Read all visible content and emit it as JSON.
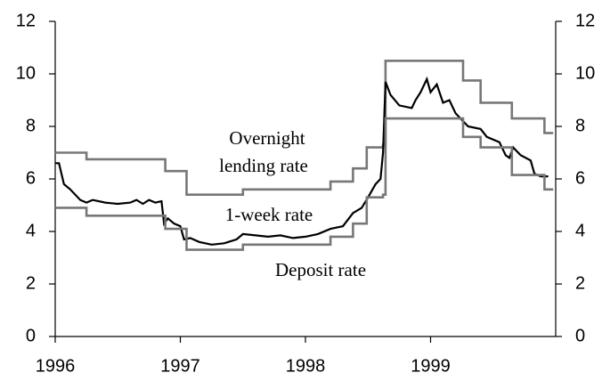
{
  "chart_data": {
    "type": "line",
    "annotations": [
      "Overnight",
      "lending rate",
      "1-week rate",
      "Deposit rate"
    ],
    "xlim": [
      1996,
      2000
    ],
    "xticks": [
      1996,
      1997,
      1998,
      1999
    ],
    "ylim": [
      0,
      12
    ],
    "yticks": [
      0,
      2,
      4,
      6,
      8,
      10,
      12
    ],
    "y2lim": [
      0,
      12
    ],
    "y2ticks": [
      0,
      2,
      4,
      6,
      8,
      10,
      12
    ],
    "grid": false,
    "series": [
      {
        "name": "Overnight lending rate",
        "color": "#777777",
        "x": [
          1996,
          1996.25,
          1996.25,
          1996.88,
          1996.88,
          1997.05,
          1997.05,
          1997.5,
          1997.5,
          1998.2,
          1998.2,
          1998.38,
          1998.38,
          1998.49,
          1998.49,
          1998.62,
          1998.62,
          1998.64,
          1998.64,
          1999.26,
          1999.26,
          1999.4,
          1999.4,
          1999.65,
          1999.65,
          1999.91,
          1999.91,
          1999.98
        ],
        "values": [
          7.0,
          7.0,
          6.75,
          6.75,
          6.3,
          6.3,
          5.4,
          5.4,
          5.6,
          5.6,
          5.9,
          5.9,
          6.4,
          6.4,
          7.2,
          7.2,
          7.3,
          7.3,
          10.5,
          10.5,
          9.75,
          9.75,
          8.9,
          8.9,
          8.3,
          8.3,
          7.75,
          7.75
        ]
      },
      {
        "name": "1-week rate",
        "color": "#000000",
        "x": [
          1996.0,
          1996.03,
          1996.07,
          1996.12,
          1996.2,
          1996.25,
          1996.3,
          1996.4,
          1996.5,
          1996.6,
          1996.65,
          1996.7,
          1996.75,
          1996.8,
          1996.85,
          1996.87,
          1996.9,
          1996.95,
          1997.0,
          1997.03,
          1997.08,
          1997.15,
          1997.25,
          1997.35,
          1997.45,
          1997.5,
          1997.6,
          1997.7,
          1997.8,
          1997.9,
          1998.0,
          1998.1,
          1998.2,
          1998.3,
          1998.38,
          1998.45,
          1998.5,
          1998.56,
          1998.6,
          1998.62,
          1998.64,
          1998.68,
          1998.75,
          1998.85,
          1998.88,
          1998.92,
          1998.97,
          1999.0,
          1999.05,
          1999.1,
          1999.15,
          1999.2,
          1999.3,
          1999.4,
          1999.45,
          1999.55,
          1999.6,
          1999.63,
          1999.66,
          1999.72,
          1999.8,
          1999.83,
          1999.88,
          1999.94
        ],
        "values": [
          6.6,
          6.6,
          5.8,
          5.6,
          5.2,
          5.1,
          5.2,
          5.1,
          5.05,
          5.1,
          5.2,
          5.05,
          5.2,
          5.1,
          5.15,
          4.3,
          4.5,
          4.3,
          4.2,
          3.7,
          3.75,
          3.6,
          3.5,
          3.55,
          3.7,
          3.9,
          3.85,
          3.8,
          3.85,
          3.75,
          3.8,
          3.9,
          4.1,
          4.2,
          4.7,
          4.9,
          5.3,
          5.8,
          6.0,
          7.0,
          9.7,
          9.2,
          8.8,
          8.7,
          9.0,
          9.3,
          9.8,
          9.3,
          9.6,
          8.9,
          9.0,
          8.5,
          8.0,
          7.9,
          7.6,
          7.4,
          6.9,
          6.8,
          7.2,
          6.9,
          6.7,
          6.2,
          6.1,
          6.1
        ]
      },
      {
        "name": "Deposit rate",
        "color": "#777777",
        "x": [
          1996,
          1996.25,
          1996.25,
          1996.88,
          1996.88,
          1997.05,
          1997.05,
          1997.5,
          1997.5,
          1998.2,
          1998.2,
          1998.38,
          1998.38,
          1998.49,
          1998.49,
          1998.62,
          1998.62,
          1998.64,
          1998.64,
          1999.26,
          1999.26,
          1999.4,
          1999.4,
          1999.65,
          1999.65,
          1999.91,
          1999.91,
          1999.98
        ],
        "values": [
          4.9,
          4.9,
          4.6,
          4.6,
          4.1,
          4.1,
          3.3,
          3.3,
          3.5,
          3.5,
          3.8,
          3.8,
          4.3,
          4.3,
          5.3,
          5.3,
          5.4,
          5.4,
          8.3,
          8.3,
          7.6,
          7.6,
          7.2,
          7.2,
          6.15,
          6.15,
          5.6,
          5.6
        ]
      }
    ]
  }
}
